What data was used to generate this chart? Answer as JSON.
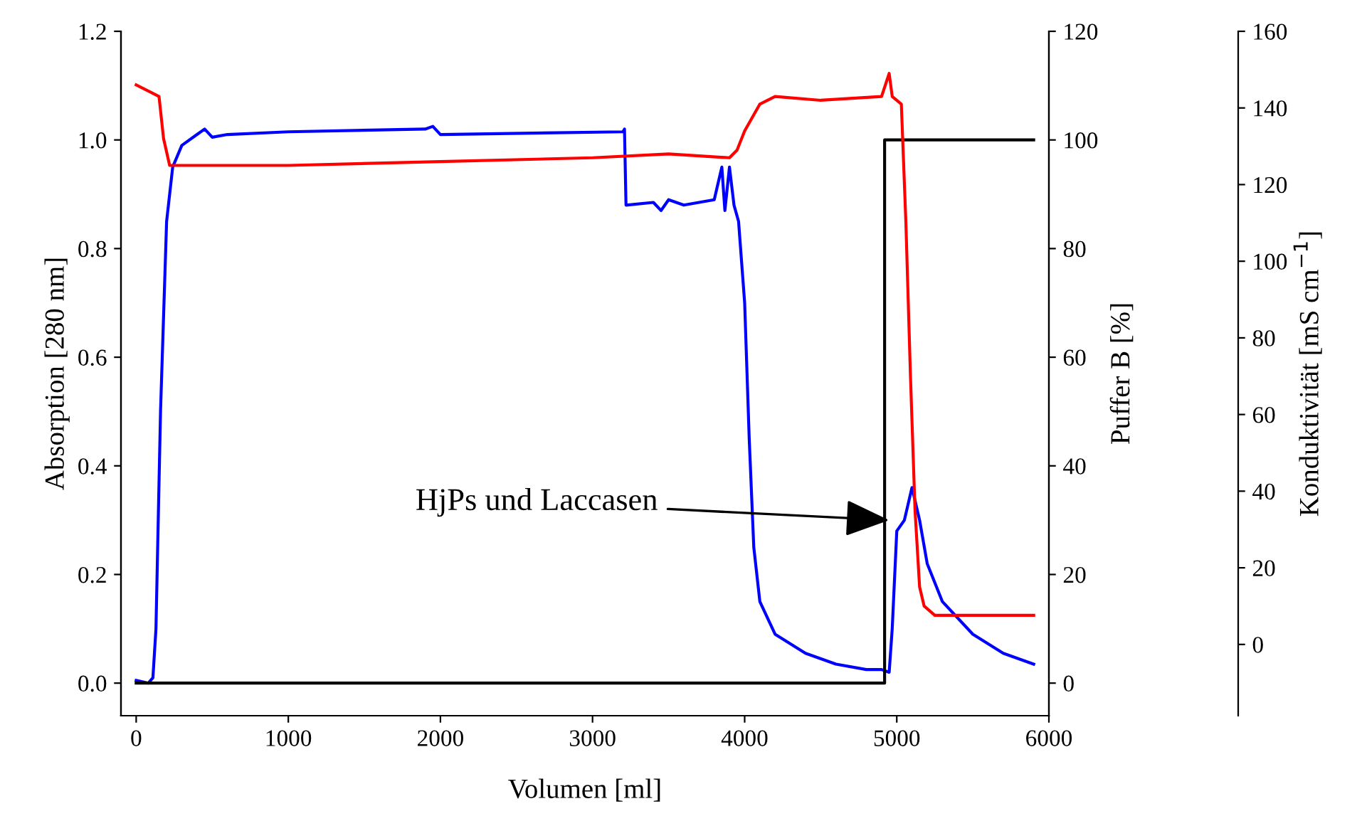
{
  "chart_data": {
    "type": "line",
    "xlabel": "Volumen [ml]",
    "ylabel": "Absorption [280 nm]",
    "y2label": "Puffer B [%]",
    "y3label": "Konduktivität [mS cm$^{−1}$]",
    "xlim": [
      -100,
      6000
    ],
    "xticks": [
      0,
      1000,
      2000,
      3000,
      4000,
      5000,
      6000
    ],
    "ylim": [
      -0.06,
      1.2
    ],
    "yticks": [
      {
        "value": 0,
        "label": "0.0"
      },
      0.2,
      0.4,
      0.6,
      0.8,
      {
        "value": 1,
        "label": "1.0"
      },
      1.2
    ],
    "y2lim": [
      -6,
      120
    ],
    "y2ticks": [
      0,
      20,
      40,
      60,
      80,
      100,
      120
    ],
    "y3lim": [
      -18.6,
      160
    ],
    "y3ticks": [
      0,
      20,
      40,
      60,
      80,
      100,
      120,
      140,
      160
    ],
    "grid": false,
    "marker": "none",
    "line_style": "solid",
    "annotations": [
      {
        "text": "HjPs und Laccasen",
        "x": 4950,
        "y": 0.3
      }
    ],
    "series": [
      {
        "color": "#ff0000",
        "axis": "y3",
        "x": [
          0,
          100,
          150,
          180,
          220,
          300,
          1000,
          2000,
          3000,
          3500,
          3900,
          3950,
          4000,
          4100,
          4200,
          4500,
          4900,
          4950,
          4970,
          5030,
          5060,
          5090,
          5120,
          5150,
          5180,
          5250,
          5900
        ],
        "values": [
          146,
          144,
          143,
          132,
          125,
          125,
          125,
          126,
          127,
          128,
          127,
          129,
          134,
          141,
          143,
          142,
          143,
          149,
          143,
          141,
          110,
          70,
          35,
          15,
          10,
          7.6,
          7.6
        ]
      },
      {
        "color": "#0000ff",
        "axis": "y",
        "x": [
          0,
          80,
          110,
          130,
          160,
          200,
          240,
          300,
          400,
          450,
          500,
          600,
          1000,
          1900,
          1950,
          2000,
          3200,
          3210,
          3220,
          3400,
          3450,
          3500,
          3600,
          3800,
          3850,
          3870,
          3900,
          3930,
          3960,
          4000,
          4030,
          4060,
          4100,
          4200,
          4400,
          4600,
          4800,
          4900,
          4950,
          4970,
          5000,
          5050,
          5100,
          5150,
          5200,
          5300,
          5500,
          5700,
          5900
        ],
        "values": [
          0.005,
          0,
          0.01,
          0.1,
          0.5,
          0.85,
          0.95,
          0.99,
          1.01,
          1.02,
          1.005,
          1.01,
          1.015,
          1.02,
          1.025,
          1.01,
          1.015,
          1.02,
          0.88,
          0.885,
          0.87,
          0.89,
          0.88,
          0.89,
          0.95,
          0.87,
          0.95,
          0.88,
          0.85,
          0.7,
          0.45,
          0.25,
          0.15,
          0.09,
          0.055,
          0.035,
          0.025,
          0.025,
          0.02,
          0.1,
          0.28,
          0.3,
          0.36,
          0.3,
          0.22,
          0.15,
          0.09,
          0.055,
          0.035
        ]
      },
      {
        "color": "#000000",
        "axis": "y2",
        "x": [
          0,
          4920,
          4920,
          5900
        ],
        "values": [
          0,
          0,
          100,
          100
        ]
      }
    ]
  }
}
